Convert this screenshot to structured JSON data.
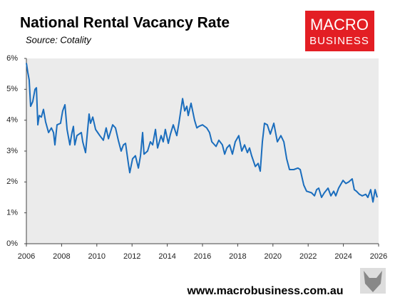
{
  "chart_data": {
    "type": "line",
    "title": "National Rental Vacancy Rate",
    "subtitle": "Source: Cotality",
    "color": "#1a6dbd",
    "grid": false,
    "x": [
      2006.0,
      2006.08,
      2006.16,
      2006.24,
      2006.36,
      2006.49,
      2006.57,
      2006.65,
      2006.73,
      2006.85,
      2006.97,
      2007.09,
      2007.26,
      2007.42,
      2007.54,
      2007.62,
      2007.74,
      2007.94,
      2008.06,
      2008.19,
      2008.31,
      2008.47,
      2008.59,
      2008.67,
      2008.75,
      2008.87,
      2008.99,
      2009.12,
      2009.2,
      2009.36,
      2009.56,
      2009.64,
      2009.77,
      2009.93,
      2010.05,
      2010.17,
      2010.37,
      2010.53,
      2010.66,
      2010.9,
      2011.06,
      2011.22,
      2011.38,
      2011.51,
      2011.63,
      2011.79,
      2011.87,
      2012.03,
      2012.19,
      2012.36,
      2012.48,
      2012.6,
      2012.68,
      2012.88,
      2013.04,
      2013.17,
      2013.33,
      2013.45,
      2013.65,
      2013.77,
      2013.89,
      2014.06,
      2014.18,
      2014.34,
      2014.54,
      2014.66,
      2014.87,
      2014.99,
      2015.11,
      2015.19,
      2015.35,
      2015.55,
      2015.68,
      2015.8,
      2016.0,
      2016.24,
      2016.4,
      2016.53,
      2016.77,
      2016.93,
      2017.13,
      2017.26,
      2017.38,
      2017.54,
      2017.7,
      2017.86,
      2018.06,
      2018.23,
      2018.39,
      2018.55,
      2018.67,
      2018.79,
      2019.0,
      2019.16,
      2019.28,
      2019.4,
      2019.52,
      2019.68,
      2019.85,
      2020.05,
      2020.25,
      2020.45,
      2020.62,
      2020.78,
      2020.94,
      2021.18,
      2021.42,
      2021.55,
      2021.75,
      2021.91,
      2022.19,
      2022.36,
      2022.48,
      2022.6,
      2022.76,
      2022.92,
      2023.13,
      2023.29,
      2023.45,
      2023.57,
      2023.73,
      2023.98,
      2024.14,
      2024.3,
      2024.5,
      2024.62,
      2024.74,
      2024.91,
      2025.07,
      2025.27,
      2025.39,
      2025.55,
      2025.68,
      2025.8,
      2025.92
    ],
    "values": [
      5.85,
      5.55,
      5.3,
      4.45,
      4.6,
      5.0,
      5.05,
      3.85,
      4.15,
      4.1,
      4.35,
      3.95,
      3.6,
      3.75,
      3.6,
      3.2,
      3.85,
      3.9,
      4.3,
      4.5,
      3.7,
      3.2,
      3.6,
      3.8,
      3.2,
      3.5,
      3.55,
      3.6,
      3.3,
      2.95,
      4.2,
      3.9,
      4.1,
      3.7,
      3.6,
      3.5,
      3.35,
      3.75,
      3.4,
      3.85,
      3.75,
      3.35,
      3.0,
      3.2,
      3.25,
      2.6,
      2.3,
      2.75,
      2.85,
      2.45,
      2.85,
      3.6,
      2.9,
      3.0,
      3.3,
      3.2,
      3.7,
      3.1,
      3.5,
      3.3,
      3.7,
      3.25,
      3.55,
      3.85,
      3.5,
      3.9,
      4.7,
      4.3,
      4.45,
      4.15,
      4.55,
      4.0,
      3.75,
      3.8,
      3.85,
      3.75,
      3.6,
      3.3,
      3.15,
      3.35,
      3.2,
      2.9,
      3.1,
      3.2,
      2.9,
      3.3,
      3.5,
      3.0,
      3.2,
      2.95,
      3.1,
      2.85,
      2.5,
      2.6,
      2.35,
      3.3,
      3.9,
      3.85,
      3.55,
      3.9,
      3.3,
      3.5,
      3.3,
      2.75,
      2.4,
      2.4,
      2.45,
      2.4,
      1.9,
      1.7,
      1.65,
      1.55,
      1.75,
      1.8,
      1.5,
      1.65,
      1.8,
      1.55,
      1.7,
      1.55,
      1.8,
      2.05,
      1.95,
      2.0,
      2.1,
      1.75,
      1.7,
      1.6,
      1.55,
      1.6,
      1.5,
      1.75,
      1.35,
      1.75,
      1.5
    ],
    "xlim": [
      2006,
      2026
    ],
    "xticks": [
      2006,
      2008,
      2010,
      2012,
      2014,
      2016,
      2018,
      2020,
      2022,
      2024,
      2026
    ],
    "ylim": [
      0,
      6
    ],
    "yticks": [
      {
        "value": 0,
        "label": "0%"
      },
      {
        "value": 1,
        "label": "1%"
      },
      {
        "value": 2,
        "label": "2%"
      },
      {
        "value": 3,
        "label": "3%"
      },
      {
        "value": 4,
        "label": "4%"
      },
      {
        "value": 5,
        "label": "5%"
      },
      {
        "value": 6,
        "label": "6%"
      }
    ]
  },
  "logo": {
    "line1": "MACRO",
    "line2": "BUSINESS"
  },
  "footer": "www.macrobusiness.com.au"
}
